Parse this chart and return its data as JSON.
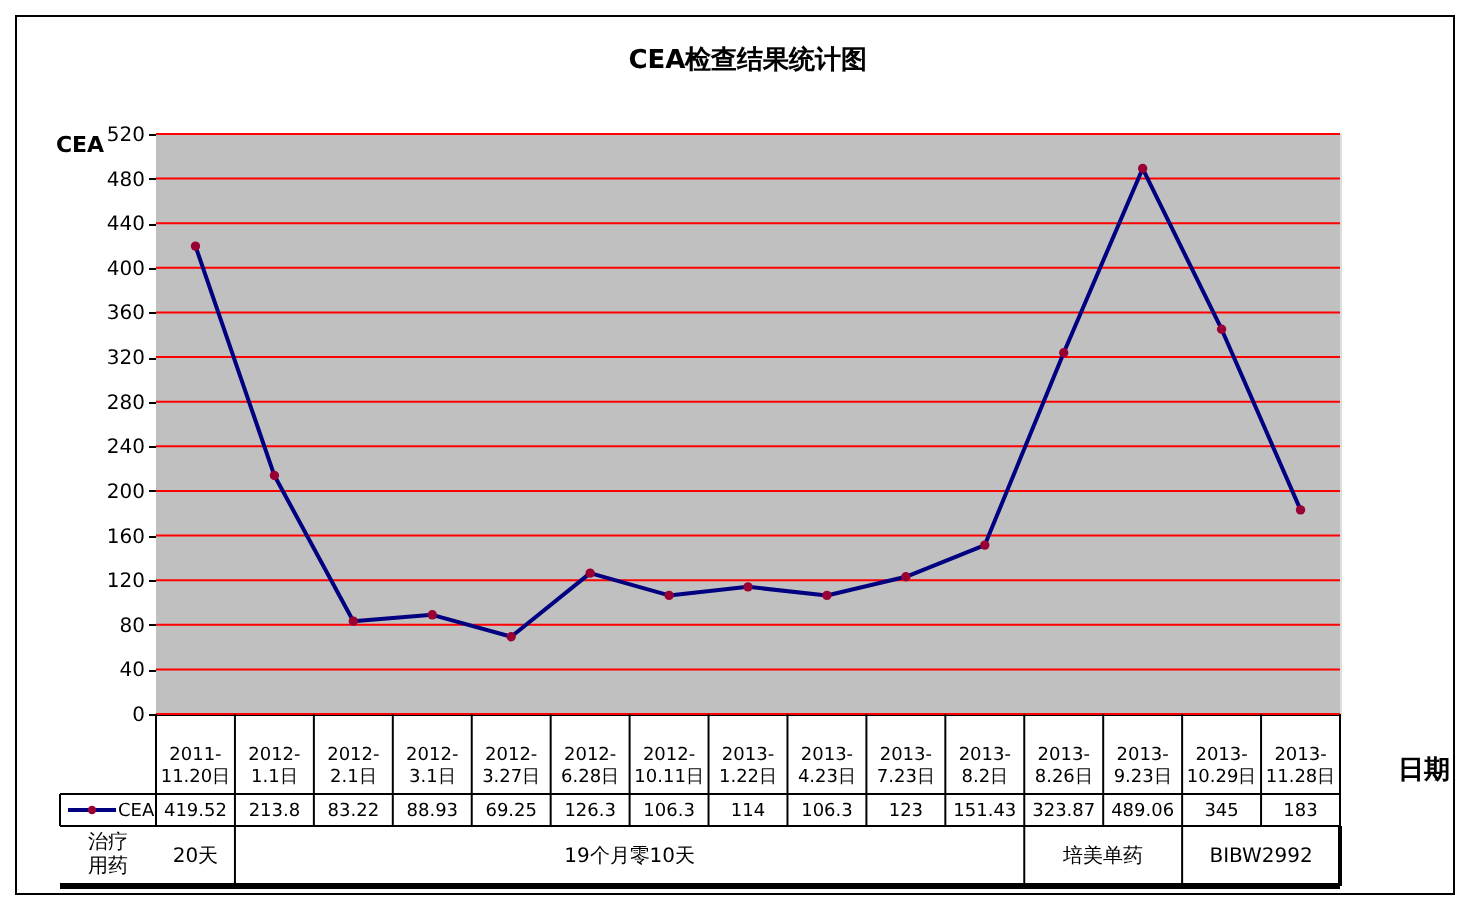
{
  "chart_data": {
    "type": "line",
    "title": "CEA检查结果统计图",
    "xlabel": "日期",
    "ylabel": "CEA",
    "categories": [
      "2011-11.20日",
      "2012-1.1日",
      "2012-2.1日",
      "2012-3.1日",
      "2012-3.27日",
      "2012-6.28日",
      "2012-10.11日",
      "2013-1.22日",
      "2013-4.23日",
      "2013-7.23日",
      "2013-8.2日",
      "2013-8.26日",
      "2013-9.23日",
      "2013-10.29日",
      "2013-11.28日"
    ],
    "series": [
      {
        "name": "CEA",
        "color": "#000080",
        "values": [
          419.52,
          213.8,
          83.22,
          88.93,
          69.25,
          126.3,
          106.3,
          114,
          106.3,
          123,
          151.43,
          323.87,
          489.06,
          345,
          183
        ]
      }
    ],
    "ylim": [
      0,
      520
    ],
    "yticks": [
      0,
      40,
      80,
      120,
      160,
      200,
      240,
      280,
      320,
      360,
      400,
      440,
      480,
      520
    ],
    "grid": "y",
    "marker": "circle",
    "line_style": "solid",
    "data_labels": true,
    "legend": "bottom left",
    "annotations": [
      "治疗用药",
      "20天",
      "19个月零10天",
      "培美单药",
      "BIBW2992"
    ]
  }
}
